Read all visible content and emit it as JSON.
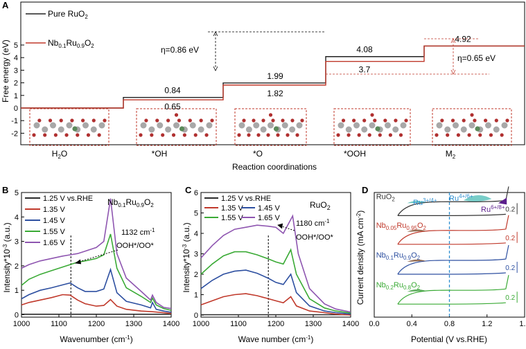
{
  "colors": {
    "pure": "#222222",
    "doped": "#c0392b",
    "dashed_box": "#c0392b",
    "v125": "#2b2b2b",
    "v135": "#c0392b",
    "v145": "#2d4fa0",
    "v155": "#3aaa35",
    "v165": "#8e55b0",
    "cyan": "#2f8fd0",
    "teal": "#3fb8b0",
    "purple_fill": "#5b1e8c",
    "brown_fill": "#7a4a2a",
    "green_fill": "#3a9a3a"
  },
  "panel_a": {
    "label": "A",
    "chart_data": {
      "type": "step",
      "title": "",
      "xlabel": "Reaction coordinations",
      "ylabel": "Free energy (eV)",
      "ylim": [
        -2,
        5.5
      ],
      "yticks": [
        "-2",
        "-1",
        "0",
        "1",
        "2",
        "3",
        "4",
        "5"
      ],
      "categories": [
        "H2O",
        "*OH",
        "*O",
        "*OOH",
        "M2"
      ],
      "category_labels": {
        "H2O": [
          "H",
          "2",
          "O"
        ],
        "*OH": [
          "*OH"
        ],
        "*O": [
          "*O"
        ],
        "*OOH": [
          "*OOH"
        ],
        "M2": [
          "M",
          "2",
          ""
        ]
      },
      "series": [
        {
          "name": "Pure RuO2",
          "values": [
            0,
            0.84,
            1.99,
            4.08,
            4.92
          ],
          "labels": [
            "",
            "0.84",
            "1.99",
            "4.08",
            "4.92"
          ]
        },
        {
          "name": "Nb0.1Ru0.9O2",
          "values": [
            0,
            0.65,
            1.82,
            3.7,
            4.92
          ],
          "labels": [
            "",
            "0.65",
            "1.82",
            "3.7",
            ""
          ]
        }
      ],
      "legend": {
        "pure": [
          "Pure RuO",
          "2",
          ""
        ],
        "doped": [
          "Nb",
          "0.1",
          "Ru",
          "0.9",
          "O",
          "2"
        ]
      },
      "annotations": [
        "η=0.86 eV",
        "η=0.65 eV"
      ]
    }
  },
  "panel_b": {
    "label": "B",
    "chart_data": {
      "type": "line",
      "xlabel_parts": [
        "Wavenumber (cm",
        "-1",
        ")"
      ],
      "ylabel_parts": [
        "Intensity*10",
        "-3",
        " (a.u.)"
      ],
      "xlim": [
        1000,
        1400
      ],
      "ylim": [
        -0.1,
        5
      ],
      "xticks": [
        "1000",
        "1100",
        "1200",
        "1300",
        "1400"
      ],
      "yticks": [
        "0",
        "1",
        "2",
        "3",
        "4",
        "5"
      ],
      "title_parts": [
        "Nb",
        "0.1",
        "Ru",
        "0.9",
        "O",
        "2"
      ],
      "marker_x": 1132,
      "annotation_parts": [
        "1132 cm",
        "-1"
      ],
      "annotation2": "OOH*/OO*",
      "series": [
        {
          "name": "1.25 V vs.RHE",
          "points": [
            [
              1000,
              0.02
            ],
            [
              1100,
              0.02
            ],
            [
              1200,
              0.02
            ],
            [
              1300,
              0.02
            ],
            [
              1400,
              0.02
            ]
          ]
        },
        {
          "name": "1.35 V",
          "points": [
            [
              1000,
              0.4
            ],
            [
              1020,
              0.5
            ],
            [
              1050,
              0.6
            ],
            [
              1080,
              0.7
            ],
            [
              1110,
              0.82
            ],
            [
              1130,
              0.8
            ],
            [
              1150,
              0.6
            ],
            [
              1170,
              0.45
            ],
            [
              1200,
              0.35
            ],
            [
              1220,
              0.38
            ],
            [
              1238,
              0.62
            ],
            [
              1255,
              0.35
            ],
            [
              1280,
              0.22
            ],
            [
              1320,
              0.15
            ],
            [
              1350,
              0.12
            ],
            [
              1380,
              0.08
            ],
            [
              1400,
              0.05
            ]
          ]
        },
        {
          "name": "1.45 V",
          "points": [
            [
              1000,
              0.65
            ],
            [
              1020,
              0.82
            ],
            [
              1050,
              1.0
            ],
            [
              1080,
              1.1
            ],
            [
              1110,
              1.22
            ],
            [
              1130,
              1.3
            ],
            [
              1150,
              1.1
            ],
            [
              1170,
              0.95
            ],
            [
              1200,
              0.95
            ],
            [
              1220,
              1.05
            ],
            [
              1238,
              1.85
            ],
            [
              1255,
              0.9
            ],
            [
              1280,
              0.55
            ],
            [
              1320,
              0.4
            ],
            [
              1345,
              0.28
            ],
            [
              1350,
              0.5
            ],
            [
              1360,
              0.22
            ],
            [
              1380,
              0.15
            ],
            [
              1400,
              0.1
            ]
          ]
        },
        {
          "name": "1.55 V",
          "points": [
            [
              1000,
              1.2
            ],
            [
              1020,
              1.45
            ],
            [
              1050,
              1.65
            ],
            [
              1080,
              1.8
            ],
            [
              1110,
              1.95
            ],
            [
              1130,
              2.05
            ],
            [
              1150,
              2.15
            ],
            [
              1170,
              2.2
            ],
            [
              1200,
              2.3
            ],
            [
              1220,
              2.45
            ],
            [
              1238,
              3.3
            ],
            [
              1255,
              1.9
            ],
            [
              1280,
              1.1
            ],
            [
              1320,
              0.75
            ],
            [
              1345,
              0.5
            ],
            [
              1350,
              0.68
            ],
            [
              1360,
              0.4
            ],
            [
              1380,
              0.25
            ],
            [
              1400,
              0.18
            ]
          ]
        },
        {
          "name": "1.65 V",
          "points": [
            [
              1000,
              1.9
            ],
            [
              1020,
              2.05
            ],
            [
              1050,
              2.2
            ],
            [
              1080,
              2.3
            ],
            [
              1110,
              2.4
            ],
            [
              1130,
              2.45
            ],
            [
              1150,
              2.5
            ],
            [
              1170,
              2.6
            ],
            [
              1200,
              2.75
            ],
            [
              1220,
              3.0
            ],
            [
              1238,
              4.75
            ],
            [
              1255,
              2.5
            ],
            [
              1280,
              1.5
            ],
            [
              1320,
              0.95
            ],
            [
              1345,
              0.6
            ],
            [
              1350,
              0.8
            ],
            [
              1360,
              0.5
            ],
            [
              1380,
              0.3
            ],
            [
              1400,
              0.25
            ]
          ]
        }
      ]
    }
  },
  "panel_c": {
    "label": "C",
    "chart_data": {
      "type": "line",
      "xlabel_parts": [
        "Wave number (cm",
        "-1",
        ")"
      ],
      "ylabel_parts": [
        "Intensity*10",
        "-3",
        " (a.u.)"
      ],
      "xlim": [
        1000,
        1400
      ],
      "ylim": [
        -0.1,
        6
      ],
      "xticks": [
        "1000",
        "1100",
        "1200",
        "1300",
        "1400"
      ],
      "yticks": [
        "0",
        "1",
        "2",
        "3",
        "4",
        "5",
        "6"
      ],
      "title_parts": [
        "RuO",
        "2",
        ""
      ],
      "marker_x": 1180,
      "annotation_parts": [
        "1180 cm",
        "-1"
      ],
      "annotation2": "OOH*/OO*",
      "series": [
        {
          "name": "1.25 V vs.RHE",
          "points": [
            [
              1000,
              0.02
            ],
            [
              1100,
              0.02
            ],
            [
              1200,
              0.02
            ],
            [
              1300,
              0.02
            ],
            [
              1400,
              0.02
            ]
          ]
        },
        {
          "name": "1.35 V",
          "points": [
            [
              1000,
              0.5
            ],
            [
              1030,
              0.7
            ],
            [
              1060,
              0.9
            ],
            [
              1090,
              1.0
            ],
            [
              1120,
              1.05
            ],
            [
              1150,
              0.95
            ],
            [
              1180,
              0.8
            ],
            [
              1200,
              0.7
            ],
            [
              1220,
              0.6
            ],
            [
              1240,
              0.9
            ],
            [
              1255,
              0.45
            ],
            [
              1290,
              0.2
            ],
            [
              1330,
              0.12
            ],
            [
              1360,
              0.05
            ],
            [
              1400,
              0.0
            ]
          ]
        },
        {
          "name": "1.45 V",
          "points": [
            [
              1000,
              1.3
            ],
            [
              1030,
              1.7
            ],
            [
              1060,
              2.0
            ],
            [
              1090,
              2.15
            ],
            [
              1120,
              2.2
            ],
            [
              1150,
              2.05
            ],
            [
              1180,
              1.8
            ],
            [
              1200,
              1.6
            ],
            [
              1220,
              1.5
            ],
            [
              1240,
              2.0
            ],
            [
              1255,
              1.1
            ],
            [
              1290,
              0.45
            ],
            [
              1330,
              0.2
            ],
            [
              1360,
              0.12
            ],
            [
              1400,
              0.05
            ]
          ]
        },
        {
          "name": "1.55 V",
          "points": [
            [
              1000,
              2.0
            ],
            [
              1030,
              2.5
            ],
            [
              1060,
              2.9
            ],
            [
              1090,
              3.1
            ],
            [
              1120,
              3.1
            ],
            [
              1150,
              2.95
            ],
            [
              1180,
              2.75
            ],
            [
              1200,
              2.6
            ],
            [
              1220,
              2.5
            ],
            [
              1240,
              3.2
            ],
            [
              1255,
              2.0
            ],
            [
              1290,
              0.8
            ],
            [
              1330,
              0.35
            ],
            [
              1360,
              0.2
            ],
            [
              1400,
              0.1
            ]
          ]
        },
        {
          "name": "1.65 V",
          "points": [
            [
              1000,
              2.8
            ],
            [
              1030,
              3.4
            ],
            [
              1060,
              3.9
            ],
            [
              1090,
              4.2
            ],
            [
              1120,
              4.3
            ],
            [
              1150,
              4.4
            ],
            [
              1180,
              4.35
            ],
            [
              1200,
              4.3
            ],
            [
              1220,
              4.0
            ],
            [
              1245,
              4.85
            ],
            [
              1260,
              3.0
            ],
            [
              1290,
              1.3
            ],
            [
              1330,
              0.55
            ],
            [
              1360,
              0.3
            ],
            [
              1400,
              0.15
            ]
          ]
        }
      ]
    }
  },
  "panel_d": {
    "label": "D",
    "chart_data": {
      "type": "line",
      "xlabel": "Potential (V vs.RHE)",
      "ylabel_parts": [
        "Current density (mA cm",
        "-2",
        ")"
      ],
      "xlim": [
        0.0,
        1.6
      ],
      "xticks": [
        "0.0",
        "0.4",
        "0.8",
        "1.2",
        "1.6"
      ],
      "dashed_x": 0.8,
      "curves": [
        {
          "name_parts": [
            "RuO",
            "2",
            "",
            "",
            "",
            ""
          ],
          "offset": 0.87
        },
        {
          "name_parts": [
            "Nb",
            "0.05",
            "Ru",
            "0.95",
            "O",
            "2"
          ],
          "offset": 0.64
        },
        {
          "name_parts": [
            "Nb",
            "0.1",
            "Ru",
            "0.9",
            "O",
            "2"
          ],
          "offset": 0.4
        },
        {
          "name_parts": [
            "Nb",
            "0.2",
            "Ru",
            "0.8",
            "O",
            "2"
          ],
          "offset": 0.16
        }
      ],
      "annotations": [
        "Ru3+/4+",
        "Ru4+/6+",
        "Ru6+/8+"
      ],
      "annot_parts": {
        "ru34": [
          "Ru",
          "3+/4+"
        ],
        "ru46": [
          "Ru",
          "4+/6+"
        ],
        "ru68": [
          "Ru",
          "6+/8+"
        ]
      },
      "scale_bars": [
        "0.2",
        "0.2",
        "0.2",
        "0.2"
      ]
    }
  }
}
